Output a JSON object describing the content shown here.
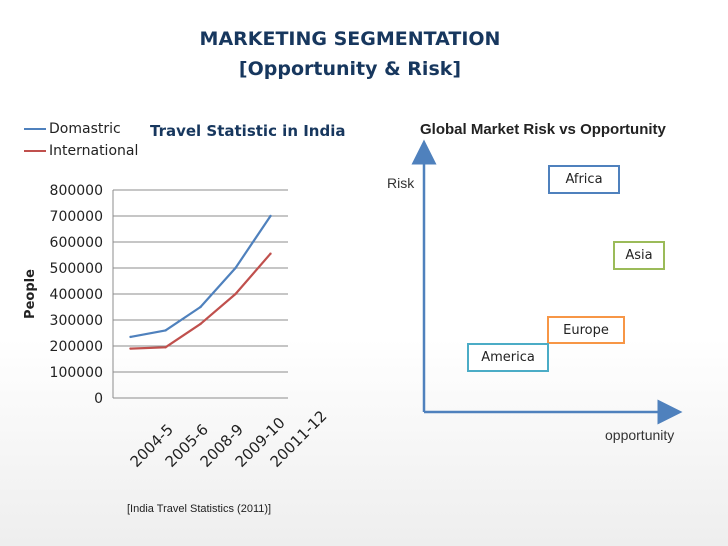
{
  "title": {
    "line1": "MARKETING SEGMENTATION",
    "line2": "[Opportunity & Risk]"
  },
  "colors": {
    "title": "#17375e",
    "domestic": "#4f81bd",
    "international": "#c0504d",
    "africa": "#4f81bd",
    "asia": "#9bbb59",
    "europe": "#f79646",
    "america": "#4bacc6",
    "arrow_axis": "#4f81bd"
  },
  "chart_data": [
    {
      "type": "line",
      "title": "Travel Statistic in India",
      "xlabel": "",
      "ylabel": "People",
      "categories": [
        "2004-5",
        "2005-6",
        "2008-9",
        "2009-10",
        "20011-12"
      ],
      "y_ticks": [
        "800000",
        "700000",
        "600000",
        "500000",
        "400000",
        "300000",
        "200000",
        "100000",
        "0"
      ],
      "ylim": [
        0,
        800000
      ],
      "grid": true,
      "legend_position": "top-left",
      "series": [
        {
          "name": "Domastric",
          "values": [
            235000,
            260000,
            350000,
            500000,
            700000
          ]
        },
        {
          "name": "International",
          "values": [
            190000,
            195000,
            285000,
            400000,
            555000
          ]
        }
      ],
      "citation": "[India Travel Statistics (2011)]"
    },
    {
      "type": "scatter",
      "title": "Global Market Risk vs Opportunity",
      "xlabel": "opportunity",
      "ylabel": "Risk",
      "xlim": [
        0,
        100
      ],
      "ylim": [
        0,
        100
      ],
      "points": [
        {
          "label": "Africa",
          "x": 60,
          "y": 95
        },
        {
          "label": "Asia",
          "x": 85,
          "y": 66
        },
        {
          "label": "Europe",
          "x": 67,
          "y": 34
        },
        {
          "label": "America",
          "x": 34,
          "y": 27
        }
      ]
    }
  ]
}
